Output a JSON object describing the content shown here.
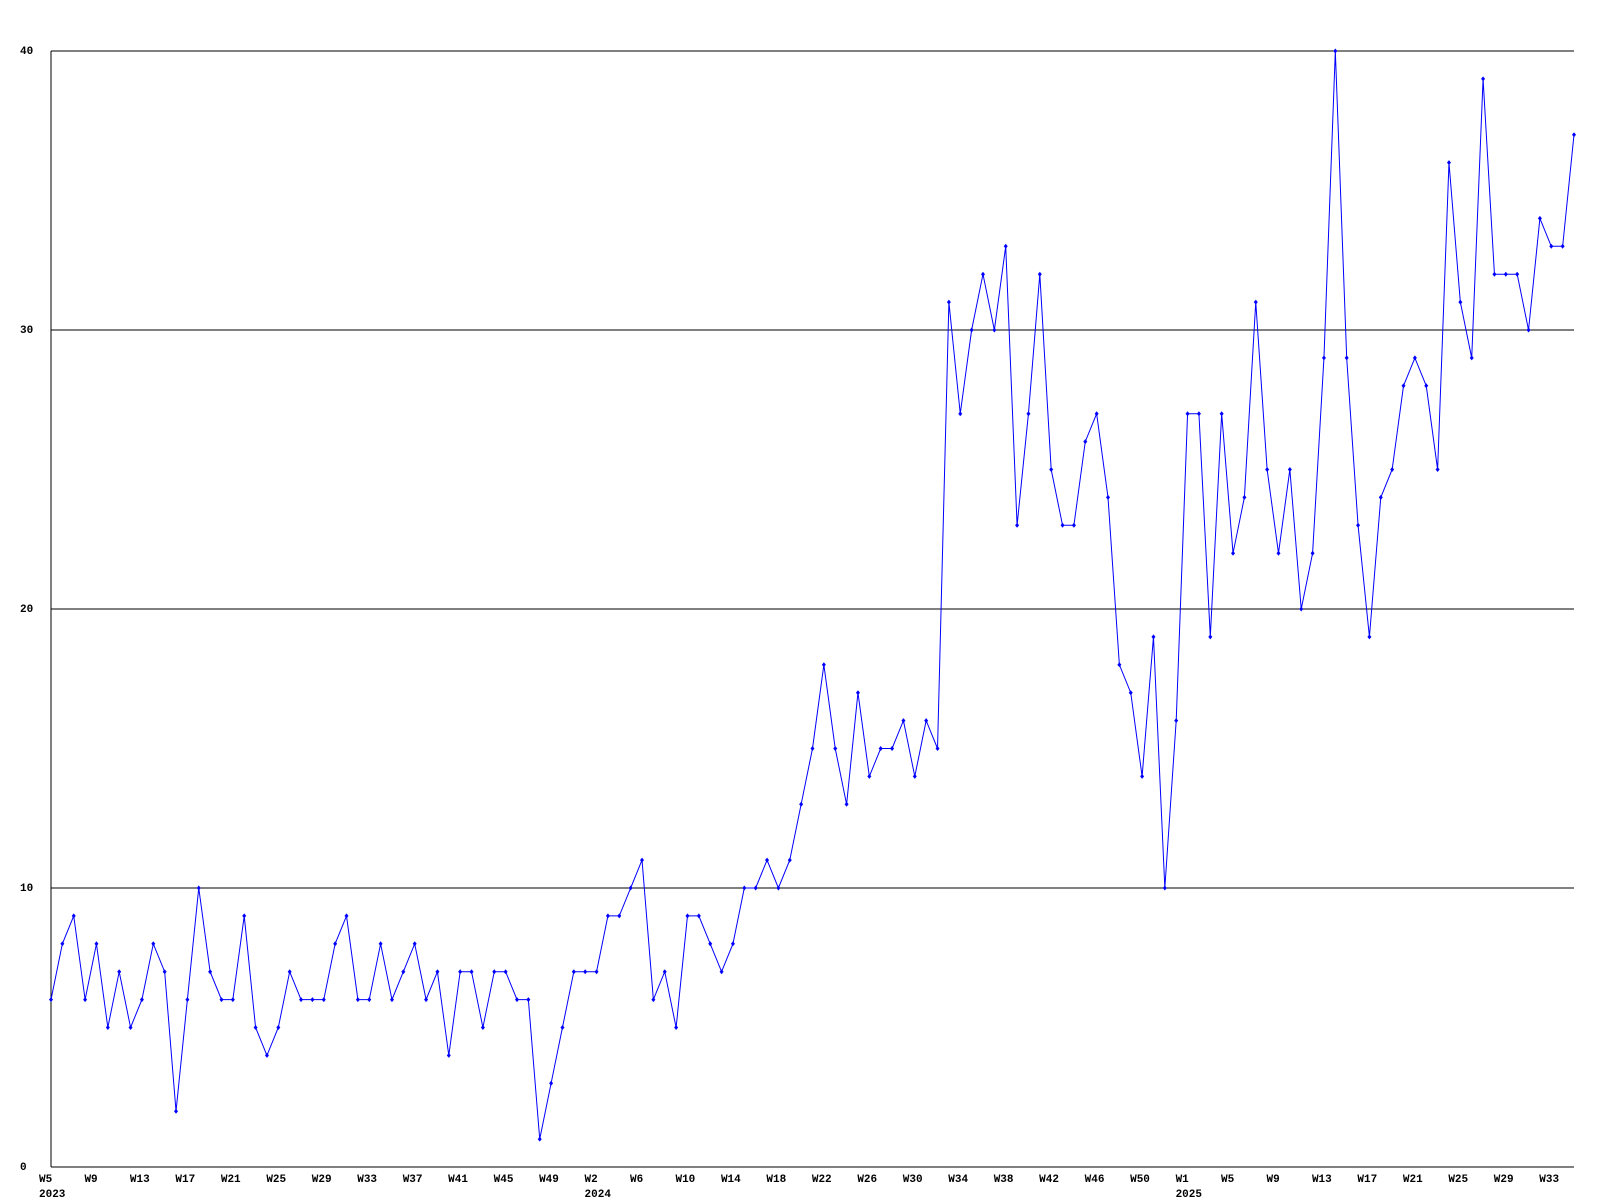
{
  "chart_data": {
    "type": "line",
    "ylim": [
      0,
      40
    ],
    "yticks": [
      0,
      10,
      20,
      30,
      40
    ],
    "grid": true,
    "categories": [
      "W5",
      null,
      null,
      null,
      "W9",
      null,
      null,
      null,
      "W13",
      null,
      null,
      null,
      "W17",
      null,
      null,
      null,
      "W21",
      null,
      null,
      null,
      "W25",
      null,
      null,
      null,
      "W29",
      null,
      null,
      null,
      "W33",
      null,
      null,
      null,
      "W37",
      null,
      null,
      null,
      "W41",
      null,
      null,
      null,
      "W45",
      null,
      null,
      null,
      "W49",
      null,
      null,
      null,
      "W2",
      null,
      null,
      null,
      "W6",
      null,
      null,
      null,
      "W10",
      null,
      null,
      null,
      "W14",
      null,
      null,
      null,
      "W18",
      null,
      null,
      null,
      "W22",
      null,
      null,
      null,
      "W26",
      null,
      null,
      null,
      "W30",
      null,
      null,
      null,
      "W34",
      null,
      null,
      null,
      "W38",
      null,
      null,
      null,
      "W42",
      null,
      null,
      null,
      "W46",
      null,
      null,
      null,
      "W50",
      null,
      null,
      null,
      "W1",
      null,
      null,
      null,
      "W5",
      null,
      null,
      null,
      "W9",
      null,
      null,
      null,
      "W13",
      null,
      null,
      null,
      "W17",
      null,
      null,
      null,
      "W21",
      null,
      null,
      null,
      "W25",
      null,
      null,
      null,
      "W29",
      null,
      null,
      null,
      "W33",
      null,
      null
    ],
    "year_labels": [
      "2023",
      null,
      null,
      null,
      null,
      null,
      null,
      null,
      null,
      null,
      null,
      null,
      null,
      null,
      null,
      null,
      null,
      null,
      null,
      null,
      null,
      null,
      null,
      null,
      null,
      null,
      null,
      null,
      null,
      null,
      null,
      null,
      null,
      null,
      null,
      null,
      null,
      null,
      null,
      null,
      null,
      null,
      null,
      null,
      null,
      null,
      null,
      null,
      "2024",
      null,
      null,
      null,
      null,
      null,
      null,
      null,
      null,
      null,
      null,
      null,
      null,
      null,
      null,
      null,
      null,
      null,
      null,
      null,
      null,
      null,
      null,
      null,
      null,
      null,
      null,
      null,
      null,
      null,
      null,
      null,
      null,
      null,
      null,
      null,
      null,
      null,
      null,
      null,
      null,
      null,
      null,
      null,
      null,
      null,
      null,
      null,
      null,
      null,
      null,
      null,
      "2025",
      null,
      null,
      null,
      null,
      null,
      null,
      null,
      null,
      null,
      null,
      null,
      null,
      null,
      null,
      null,
      null,
      null,
      null,
      null,
      null,
      null,
      null,
      null,
      null,
      null,
      null,
      null,
      null,
      null,
      null,
      null,
      null,
      null,
      null
    ],
    "series": [
      {
        "color": "#0000ff",
        "values": [
          6,
          8,
          9,
          6,
          8,
          5,
          7,
          5,
          6,
          8,
          7,
          2,
          6,
          10,
          7,
          6,
          6,
          9,
          5,
          4,
          5,
          7,
          6,
          6,
          6,
          8,
          9,
          6,
          6,
          8,
          6,
          7,
          8,
          6,
          7,
          4,
          7,
          7,
          5,
          7,
          7,
          6,
          6,
          1,
          3,
          5,
          7,
          7,
          7,
          9,
          9,
          10,
          11,
          6,
          7,
          5,
          9,
          9,
          8,
          7,
          8,
          10,
          10,
          11,
          10,
          11,
          13,
          15,
          18,
          15,
          13,
          17,
          14,
          15,
          15,
          16,
          14,
          16,
          15,
          31,
          27,
          30,
          32,
          30,
          33,
          23,
          27,
          32,
          25,
          23,
          23,
          26,
          27,
          24,
          18,
          17,
          14,
          19,
          10,
          16,
          27,
          27,
          19,
          27,
          22,
          24,
          31,
          25,
          22,
          25,
          20,
          22,
          29,
          40,
          29,
          23,
          19,
          24,
          25,
          28,
          29,
          28,
          25,
          36,
          31,
          29,
          39,
          32,
          32,
          32,
          30,
          34,
          33,
          33,
          37
        ]
      }
    ]
  }
}
